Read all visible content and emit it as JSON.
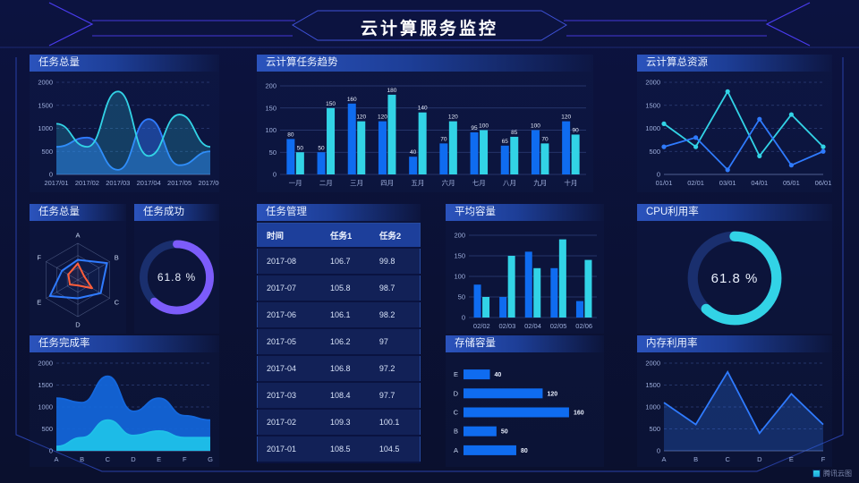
{
  "title": "云计算服务监控",
  "watermark": "腾讯云图",
  "colors": {
    "blue": "#0f6cf0",
    "cyan": "#32d3e6",
    "deepblue": "#1467dc",
    "skyblue": "#1fc0e8",
    "purple": "#7c5cfa",
    "orange": "#ff5e3a",
    "line_blue": "#2f7bff",
    "grid": "#2e3f78",
    "axis": "#9fb0dd",
    "track": "#1a2f6e"
  },
  "panels": {
    "task_total_area": {
      "title": "任务总量"
    },
    "task_trend": {
      "title": "云计算任务趋势"
    },
    "total_resource": {
      "title": "云计算总资源"
    },
    "task_total_radar": {
      "title": "任务总量"
    },
    "task_success": {
      "title": "任务成功",
      "value": "61.8 %"
    },
    "task_table": {
      "title": "任务管理"
    },
    "avg_capacity": {
      "title": "平均容量"
    },
    "cpu": {
      "title": "CPU利用率",
      "value": "61.8 %"
    },
    "completion": {
      "title": "任务完成率"
    },
    "storage": {
      "title": "存储容量"
    },
    "memory": {
      "title": "内存利用率"
    }
  },
  "table": {
    "headers": [
      "时间",
      "任务1",
      "任务2"
    ],
    "rows": [
      [
        "2017-08",
        "106.7",
        "99.8"
      ],
      [
        "2017-07",
        "105.8",
        "98.7"
      ],
      [
        "2017-06",
        "106.1",
        "98.2"
      ],
      [
        "2017-05",
        "106.2",
        "97"
      ],
      [
        "2017-04",
        "106.8",
        "97.2"
      ],
      [
        "2017-03",
        "108.4",
        "97.7"
      ],
      [
        "2017-02",
        "109.3",
        "100.1"
      ],
      [
        "2017-01",
        "108.5",
        "104.5"
      ]
    ]
  },
  "chart_data": [
    {
      "id": "task_total_area",
      "type": "area",
      "title": "任务总量",
      "smooth": true,
      "x": [
        "2017/01",
        "2017/02",
        "2017/03",
        "2017/04",
        "2017/05",
        "2017/06"
      ],
      "series": [
        {
          "name": "series-blue",
          "color": "line_blue",
          "fill": 0.45,
          "values": [
            600,
            800,
            100,
            1200,
            200,
            500
          ]
        },
        {
          "name": "series-cyan",
          "color": "cyan",
          "fill": 0.22,
          "values": [
            1100,
            600,
            1800,
            400,
            1300,
            600
          ]
        }
      ],
      "ylim": [
        0,
        2000
      ],
      "yticks": [
        0,
        500,
        1000,
        1500,
        2000
      ]
    },
    {
      "id": "task_trend",
      "type": "bar",
      "title": "云计算任务趋势",
      "value_labels": true,
      "categories": [
        "一月",
        "二月",
        "三月",
        "四月",
        "五月",
        "六月",
        "七月",
        "八月",
        "九月",
        "十月"
      ],
      "series": [
        {
          "name": "series-blue",
          "color": "blue",
          "values": [
            80,
            50,
            160,
            120,
            40,
            70,
            95,
            65,
            100,
            120
          ]
        },
        {
          "name": "series-cyan",
          "color": "cyan",
          "values": [
            50,
            150,
            120,
            180,
            140,
            120,
            100,
            85,
            70,
            90
          ]
        }
      ],
      "ylim": [
        0,
        200
      ],
      "yticks": [
        0,
        50,
        100,
        150,
        200
      ]
    },
    {
      "id": "total_resource",
      "type": "line",
      "title": "云计算总资源",
      "markers": true,
      "x": [
        "01/01",
        "02/01",
        "03/01",
        "04/01",
        "05/01",
        "06/01"
      ],
      "series": [
        {
          "name": "series-cyan",
          "color": "cyan",
          "values": [
            1100,
            600,
            1800,
            400,
            1300,
            600
          ]
        },
        {
          "name": "series-blue",
          "color": "line_blue",
          "values": [
            600,
            800,
            100,
            1200,
            200,
            500
          ]
        }
      ],
      "ylim": [
        0,
        2000
      ],
      "yticks": [
        0,
        500,
        1000,
        1500,
        2000
      ]
    },
    {
      "id": "task_total_radar",
      "type": "radar",
      "title": "任务总量",
      "axes": [
        "A",
        "B",
        "C",
        "D",
        "E",
        "F"
      ],
      "series": [
        {
          "name": "series-blue",
          "color": "line_blue",
          "values": [
            0.55,
            0.92,
            0.72,
            0.5,
            0.88,
            0.5
          ]
        },
        {
          "name": "series-orange",
          "color": "orange",
          "values": [
            0.45,
            0.2,
            0.45,
            0.15,
            0.25,
            0.3
          ]
        }
      ]
    },
    {
      "id": "task_success",
      "type": "donut",
      "title": "任务成功",
      "value": 61.8,
      "label": "61.8 %",
      "color": "purple"
    },
    {
      "id": "avg_capacity",
      "type": "bar",
      "title": "平均容量",
      "value_labels": false,
      "categories": [
        "02/02",
        "02/03",
        "02/04",
        "02/05",
        "02/06"
      ],
      "series": [
        {
          "name": "series-blue",
          "color": "blue",
          "values": [
            80,
            50,
            160,
            120,
            40
          ]
        },
        {
          "name": "series-cyan",
          "color": "cyan",
          "values": [
            50,
            150,
            120,
            190,
            140
          ]
        }
      ],
      "ylim": [
        0,
        200
      ],
      "yticks": [
        0,
        50,
        100,
        150,
        200
      ]
    },
    {
      "id": "cpu",
      "type": "donut",
      "title": "CPU利用率",
      "value": 61.8,
      "label": "61.8 %",
      "color": "cyan"
    },
    {
      "id": "completion",
      "type": "area",
      "title": "任务完成率",
      "smooth": true,
      "x": [
        "A",
        "B",
        "C",
        "D",
        "E",
        "F",
        "G"
      ],
      "series": [
        {
          "name": "series-blue",
          "color": "deepblue",
          "fill": 0.92,
          "values": [
            1200,
            1100,
            1700,
            900,
            1200,
            800,
            700
          ]
        },
        {
          "name": "series-cyan",
          "color": "skyblue",
          "fill": 0.95,
          "values": [
            100,
            300,
            700,
            350,
            450,
            300,
            300
          ]
        }
      ],
      "ylim": [
        0,
        2000
      ],
      "yticks": [
        0,
        500,
        1000,
        1500,
        2000
      ]
    },
    {
      "id": "storage",
      "type": "hbar",
      "title": "存储容量",
      "categories": [
        "E",
        "D",
        "C",
        "B",
        "A"
      ],
      "values": [
        40,
        120,
        160,
        50,
        80
      ],
      "xlim": [
        0,
        175
      ]
    },
    {
      "id": "memory",
      "type": "line",
      "title": "内存利用率",
      "x": [
        "A",
        "B",
        "C",
        "D",
        "E",
        "F"
      ],
      "series": [
        {
          "name": "series-blue",
          "color": "line_blue",
          "fill": 0.25,
          "values": [
            1100,
            600,
            1800,
            400,
            1300,
            600
          ]
        }
      ],
      "ylim": [
        0,
        2000
      ],
      "yticks": [
        0,
        500,
        1000,
        1500,
        2000
      ]
    }
  ]
}
